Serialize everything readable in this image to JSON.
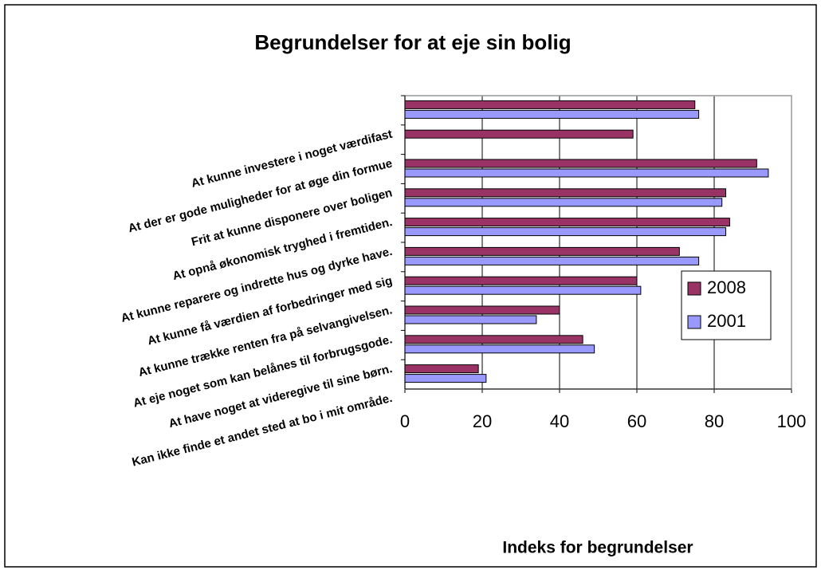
{
  "chart_data": {
    "type": "bar",
    "orientation": "horizontal",
    "title": "Begrundelser for at eje sin bolig",
    "x_label": "Indeks for begrundelser",
    "categories": [
      "At kunne investere i noget værdifast",
      "At der er gode muligheder for at øge din formue",
      "Frit at kunne disponere over boligen",
      "At opnå økonomisk tryghed i fremtiden.",
      "At kunne reparere og indrette hus og dyrke have.",
      "At kunne få værdien af forbedringer med sig",
      "At kunne trække renten fra på selvangivelsen.",
      "At eje noget som kan belånes til forbrugsgode.",
      "At have noget at videregive til sine børn.",
      "Kan ikke finde et andet sted at bo i mit område."
    ],
    "series": [
      {
        "name": "2008",
        "color": "#993366",
        "values": [
          75,
          59,
          91,
          83,
          84,
          71,
          60,
          40,
          46,
          19
        ]
      },
      {
        "name": "2001",
        "color": "#9999ff",
        "values": [
          76,
          null,
          94,
          82,
          83,
          76,
          61,
          34,
          49,
          21
        ]
      }
    ],
    "xlim": [
      0,
      100
    ],
    "xticks": [
      0,
      20,
      40,
      60,
      80,
      100
    ],
    "grid": true,
    "legend": "right"
  }
}
